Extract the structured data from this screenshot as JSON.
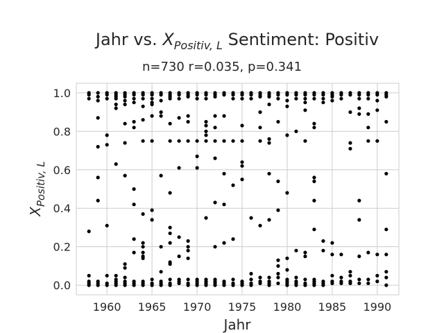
{
  "chart_data": {
    "type": "scatter",
    "title_prefix": "Jahr vs. ",
    "title_var_base": "X",
    "title_var_sub": "Positiv, L",
    "title_suffix": " Sentiment: Positiv",
    "subtitle": "n=730 r=0.035, p=0.341",
    "xlabel": "Jahr",
    "ylabel_base": "X",
    "ylabel_sub": "Positiv, L",
    "xlim": [
      1956.6,
      1992.4
    ],
    "ylim": [
      -0.05,
      1.05
    ],
    "xticks": [
      1960,
      1965,
      1970,
      1975,
      1980,
      1985,
      1990
    ],
    "yticks": [
      0.0,
      0.2,
      0.4,
      0.6,
      0.8,
      1.0
    ],
    "ytick_labels": [
      "0.0",
      "0.2",
      "0.4",
      "0.6",
      "0.8",
      "1.0"
    ],
    "grid": true,
    "marker_color": "#000000",
    "points": [
      [
        1958,
        1.0
      ],
      [
        1958,
        0.99
      ],
      [
        1958,
        0.97
      ],
      [
        1958,
        0.28
      ],
      [
        1958,
        0.05
      ],
      [
        1958,
        0.02
      ],
      [
        1958,
        0.01
      ],
      [
        1958,
        0.0
      ],
      [
        1959,
        1.0
      ],
      [
        1959,
        0.98
      ],
      [
        1959,
        0.96
      ],
      [
        1959,
        0.87
      ],
      [
        1959,
        0.72
      ],
      [
        1959,
        0.56
      ],
      [
        1959,
        0.44
      ],
      [
        1959,
        0.02
      ],
      [
        1959,
        0.01
      ],
      [
        1959,
        0.0
      ],
      [
        1960,
        1.0
      ],
      [
        1960,
        0.99
      ],
      [
        1960,
        0.97
      ],
      [
        1960,
        0.78
      ],
      [
        1960,
        0.73
      ],
      [
        1960,
        0.31
      ],
      [
        1960,
        0.05
      ],
      [
        1960,
        0.01
      ],
      [
        1960,
        0.0
      ],
      [
        1961,
        1.0
      ],
      [
        1961,
        0.99
      ],
      [
        1961,
        0.98
      ],
      [
        1961,
        0.97
      ],
      [
        1961,
        0.94
      ],
      [
        1961,
        0.92
      ],
      [
        1961,
        0.63
      ],
      [
        1961,
        0.05
      ],
      [
        1961,
        0.03
      ],
      [
        1961,
        0.02
      ],
      [
        1961,
        0.01
      ],
      [
        1961,
        0.0
      ],
      [
        1962,
        1.0
      ],
      [
        1962,
        0.99
      ],
      [
        1962,
        0.98
      ],
      [
        1962,
        0.96
      ],
      [
        1962,
        0.94
      ],
      [
        1962,
        0.84
      ],
      [
        1962,
        0.74
      ],
      [
        1962,
        0.57
      ],
      [
        1962,
        0.11
      ],
      [
        1962,
        0.09
      ],
      [
        1962,
        0.04
      ],
      [
        1962,
        0.02
      ],
      [
        1962,
        0.01
      ],
      [
        1962,
        0.0
      ],
      [
        1963,
        1.0
      ],
      [
        1963,
        0.99
      ],
      [
        1963,
        0.97
      ],
      [
        1963,
        0.95
      ],
      [
        1963,
        0.85
      ],
      [
        1963,
        0.82
      ],
      [
        1963,
        0.5
      ],
      [
        1963,
        0.42
      ],
      [
        1963,
        0.24
      ],
      [
        1963,
        0.17
      ],
      [
        1963,
        0.02
      ],
      [
        1963,
        0.01
      ],
      [
        1963,
        0.0
      ],
      [
        1964,
        1.0
      ],
      [
        1964,
        0.99
      ],
      [
        1964,
        0.97
      ],
      [
        1964,
        0.93
      ],
      [
        1964,
        0.86
      ],
      [
        1964,
        0.75
      ],
      [
        1964,
        0.37
      ],
      [
        1964,
        0.22
      ],
      [
        1964,
        0.2
      ],
      [
        1964,
        0.17
      ],
      [
        1964,
        0.15
      ],
      [
        1964,
        0.14
      ],
      [
        1964,
        0.02
      ],
      [
        1964,
        0.01
      ],
      [
        1964,
        0.0
      ],
      [
        1965,
        1.0
      ],
      [
        1965,
        0.99
      ],
      [
        1965,
        0.97
      ],
      [
        1965,
        0.95
      ],
      [
        1965,
        0.94
      ],
      [
        1965,
        0.88
      ],
      [
        1965,
        0.75
      ],
      [
        1965,
        0.39
      ],
      [
        1965,
        0.34
      ],
      [
        1965,
        0.03
      ],
      [
        1965,
        0.01
      ],
      [
        1965,
        0.0
      ],
      [
        1966,
        1.0
      ],
      [
        1966,
        0.99
      ],
      [
        1966,
        0.96
      ],
      [
        1966,
        0.9
      ],
      [
        1966,
        0.88
      ],
      [
        1966,
        0.57
      ],
      [
        1966,
        0.2
      ],
      [
        1966,
        0.07
      ],
      [
        1966,
        0.02
      ],
      [
        1966,
        0.01
      ],
      [
        1966,
        0.0
      ],
      [
        1967,
        1.0
      ],
      [
        1967,
        0.99
      ],
      [
        1967,
        0.98
      ],
      [
        1967,
        0.97
      ],
      [
        1967,
        0.84
      ],
      [
        1967,
        0.75
      ],
      [
        1967,
        0.48
      ],
      [
        1967,
        0.3
      ],
      [
        1967,
        0.27
      ],
      [
        1967,
        0.22
      ],
      [
        1967,
        0.12
      ],
      [
        1967,
        0.11
      ],
      [
        1967,
        0.03
      ],
      [
        1967,
        0.01
      ],
      [
        1967,
        0.0
      ],
      [
        1968,
        1.0
      ],
      [
        1968,
        0.99
      ],
      [
        1968,
        0.97
      ],
      [
        1968,
        0.87
      ],
      [
        1968,
        0.75
      ],
      [
        1968,
        0.61
      ],
      [
        1968,
        0.25
      ],
      [
        1968,
        0.15
      ],
      [
        1968,
        0.03
      ],
      [
        1968,
        0.02
      ],
      [
        1968,
        0.01
      ],
      [
        1969,
        1.0
      ],
      [
        1969,
        0.99
      ],
      [
        1969,
        0.98
      ],
      [
        1969,
        0.88
      ],
      [
        1969,
        0.85
      ],
      [
        1969,
        0.75
      ],
      [
        1969,
        0.23
      ],
      [
        1969,
        0.2
      ],
      [
        1969,
        0.18
      ],
      [
        1969,
        0.14
      ],
      [
        1969,
        0.03
      ],
      [
        1969,
        0.01
      ],
      [
        1969,
        0.0
      ],
      [
        1970,
        1.0
      ],
      [
        1970,
        0.99
      ],
      [
        1970,
        0.97
      ],
      [
        1970,
        0.75
      ],
      [
        1970,
        0.67
      ],
      [
        1970,
        0.61
      ],
      [
        1970,
        0.03
      ],
      [
        1970,
        0.02
      ],
      [
        1970,
        0.01
      ],
      [
        1970,
        0.0
      ],
      [
        1971,
        1.0
      ],
      [
        1971,
        0.99
      ],
      [
        1971,
        0.97
      ],
      [
        1971,
        0.85
      ],
      [
        1971,
        0.83
      ],
      [
        1971,
        0.8
      ],
      [
        1971,
        0.78
      ],
      [
        1971,
        0.75
      ],
      [
        1971,
        0.35
      ],
      [
        1971,
        0.03
      ],
      [
        1971,
        0.02
      ],
      [
        1971,
        0.01
      ],
      [
        1971,
        0.0
      ],
      [
        1972,
        1.0
      ],
      [
        1972,
        0.99
      ],
      [
        1972,
        0.98
      ],
      [
        1972,
        0.88
      ],
      [
        1972,
        0.82
      ],
      [
        1972,
        0.75
      ],
      [
        1972,
        0.66
      ],
      [
        1972,
        0.43
      ],
      [
        1972,
        0.2
      ],
      [
        1972,
        0.03
      ],
      [
        1972,
        0.02
      ],
      [
        1972,
        0.01
      ],
      [
        1972,
        0.0
      ],
      [
        1973,
        1.0
      ],
      [
        1973,
        0.99
      ],
      [
        1973,
        0.88
      ],
      [
        1973,
        0.75
      ],
      [
        1973,
        0.58
      ],
      [
        1973,
        0.42
      ],
      [
        1973,
        0.22
      ],
      [
        1973,
        0.02
      ],
      [
        1973,
        0.01
      ],
      [
        1973,
        0.0
      ],
      [
        1974,
        1.0
      ],
      [
        1974,
        0.99
      ],
      [
        1974,
        0.97
      ],
      [
        1974,
        0.75
      ],
      [
        1974,
        0.52
      ],
      [
        1974,
        0.24
      ],
      [
        1974,
        0.03
      ],
      [
        1974,
        0.01
      ],
      [
        1974,
        0.0
      ],
      [
        1975,
        1.0
      ],
      [
        1975,
        0.99
      ],
      [
        1975,
        0.97
      ],
      [
        1975,
        0.83
      ],
      [
        1975,
        0.75
      ],
      [
        1975,
        0.64
      ],
      [
        1975,
        0.62
      ],
      [
        1975,
        0.55
      ],
      [
        1975,
        0.02
      ],
      [
        1975,
        0.01
      ],
      [
        1975,
        0.0
      ],
      [
        1976,
        1.0
      ],
      [
        1976,
        0.99
      ],
      [
        1976,
        0.97
      ],
      [
        1976,
        0.35
      ],
      [
        1976,
        0.06
      ],
      [
        1976,
        0.03
      ],
      [
        1976,
        0.01
      ],
      [
        1976,
        0.0
      ],
      [
        1977,
        1.0
      ],
      [
        1977,
        0.99
      ],
      [
        1977,
        0.98
      ],
      [
        1977,
        0.9
      ],
      [
        1977,
        0.82
      ],
      [
        1977,
        0.75
      ],
      [
        1977,
        0.31
      ],
      [
        1977,
        0.04
      ],
      [
        1977,
        0.02
      ],
      [
        1977,
        0.01
      ],
      [
        1978,
        1.0
      ],
      [
        1978,
        0.99
      ],
      [
        1978,
        0.98
      ],
      [
        1978,
        0.94
      ],
      [
        1978,
        0.76
      ],
      [
        1978,
        0.74
      ],
      [
        1978,
        0.58
      ],
      [
        1978,
        0.34
      ],
      [
        1978,
        0.04
      ],
      [
        1978,
        0.02
      ],
      [
        1978,
        0.01
      ],
      [
        1978,
        0.0
      ],
      [
        1979,
        1.0
      ],
      [
        1979,
        0.99
      ],
      [
        1979,
        0.97
      ],
      [
        1979,
        0.85
      ],
      [
        1979,
        0.54
      ],
      [
        1979,
        0.39
      ],
      [
        1979,
        0.13
      ],
      [
        1979,
        0.1
      ],
      [
        1979,
        0.06
      ],
      [
        1979,
        0.04
      ],
      [
        1979,
        0.01
      ],
      [
        1980,
        1.0
      ],
      [
        1980,
        0.99
      ],
      [
        1980,
        0.96
      ],
      [
        1980,
        0.93
      ],
      [
        1980,
        0.78
      ],
      [
        1980,
        0.48
      ],
      [
        1980,
        0.14
      ],
      [
        1980,
        0.08
      ],
      [
        1980,
        0.03
      ],
      [
        1980,
        0.02
      ],
      [
        1980,
        0.01
      ],
      [
        1980,
        0.0
      ],
      [
        1981,
        1.0
      ],
      [
        1981,
        0.99
      ],
      [
        1981,
        0.97
      ],
      [
        1981,
        0.8
      ],
      [
        1981,
        0.18
      ],
      [
        1981,
        0.04
      ],
      [
        1981,
        0.02
      ],
      [
        1981,
        0.01
      ],
      [
        1981,
        0.0
      ],
      [
        1982,
        1.0
      ],
      [
        1982,
        0.99
      ],
      [
        1982,
        0.97
      ],
      [
        1982,
        0.95
      ],
      [
        1982,
        0.91
      ],
      [
        1982,
        0.75
      ],
      [
        1982,
        0.17
      ],
      [
        1982,
        0.15
      ],
      [
        1982,
        0.03
      ],
      [
        1982,
        0.01
      ],
      [
        1982,
        0.0
      ],
      [
        1983,
        1.0
      ],
      [
        1983,
        0.99
      ],
      [
        1983,
        0.97
      ],
      [
        1983,
        0.84
      ],
      [
        1983,
        0.82
      ],
      [
        1983,
        0.56
      ],
      [
        1983,
        0.54
      ],
      [
        1983,
        0.44
      ],
      [
        1983,
        0.29
      ],
      [
        1983,
        0.03
      ],
      [
        1983,
        0.02
      ],
      [
        1983,
        0.01
      ],
      [
        1983,
        0.0
      ],
      [
        1984,
        1.0
      ],
      [
        1984,
        0.99
      ],
      [
        1984,
        0.97
      ],
      [
        1984,
        0.95
      ],
      [
        1984,
        0.23
      ],
      [
        1984,
        0.18
      ],
      [
        1984,
        0.02
      ],
      [
        1984,
        0.01
      ],
      [
        1984,
        0.0
      ],
      [
        1985,
        1.0
      ],
      [
        1985,
        0.99
      ],
      [
        1985,
        0.98
      ],
      [
        1985,
        0.96
      ],
      [
        1985,
        0.22
      ],
      [
        1985,
        0.16
      ],
      [
        1985,
        0.05
      ],
      [
        1985,
        0.02
      ],
      [
        1985,
        0.01
      ],
      [
        1986,
        1.0
      ],
      [
        1986,
        0.99
      ],
      [
        1986,
        0.97
      ],
      [
        1986,
        0.16
      ],
      [
        1986,
        0.04
      ],
      [
        1986,
        0.02
      ],
      [
        1986,
        0.01
      ],
      [
        1987,
        1.0
      ],
      [
        1987,
        0.99
      ],
      [
        1987,
        0.9
      ],
      [
        1987,
        0.74
      ],
      [
        1987,
        0.71
      ],
      [
        1987,
        0.07
      ],
      [
        1987,
        0.05
      ],
      [
        1987,
        0.02
      ],
      [
        1987,
        0.01
      ],
      [
        1988,
        1.0
      ],
      [
        1988,
        0.99
      ],
      [
        1988,
        0.97
      ],
      [
        1988,
        0.92
      ],
      [
        1988,
        0.89
      ],
      [
        1988,
        0.44
      ],
      [
        1988,
        0.34
      ],
      [
        1988,
        0.15
      ],
      [
        1988,
        0.03
      ],
      [
        1988,
        0.01
      ],
      [
        1989,
        1.0
      ],
      [
        1989,
        0.99
      ],
      [
        1989,
        0.97
      ],
      [
        1989,
        0.89
      ],
      [
        1989,
        0.82
      ],
      [
        1989,
        0.75
      ],
      [
        1989,
        0.17
      ],
      [
        1989,
        0.03
      ],
      [
        1989,
        0.01
      ],
      [
        1990,
        1.0
      ],
      [
        1990,
        0.99
      ],
      [
        1990,
        0.96
      ],
      [
        1990,
        0.91
      ],
      [
        1990,
        0.75
      ],
      [
        1990,
        0.16
      ],
      [
        1990,
        0.05
      ],
      [
        1990,
        0.02
      ],
      [
        1991,
        1.0
      ],
      [
        1991,
        0.99
      ],
      [
        1991,
        0.98
      ],
      [
        1991,
        0.85
      ],
      [
        1991,
        0.58
      ],
      [
        1991,
        0.29
      ],
      [
        1991,
        0.16
      ],
      [
        1991,
        0.07
      ],
      [
        1991,
        0.04
      ],
      [
        1991,
        0.0
      ]
    ]
  }
}
